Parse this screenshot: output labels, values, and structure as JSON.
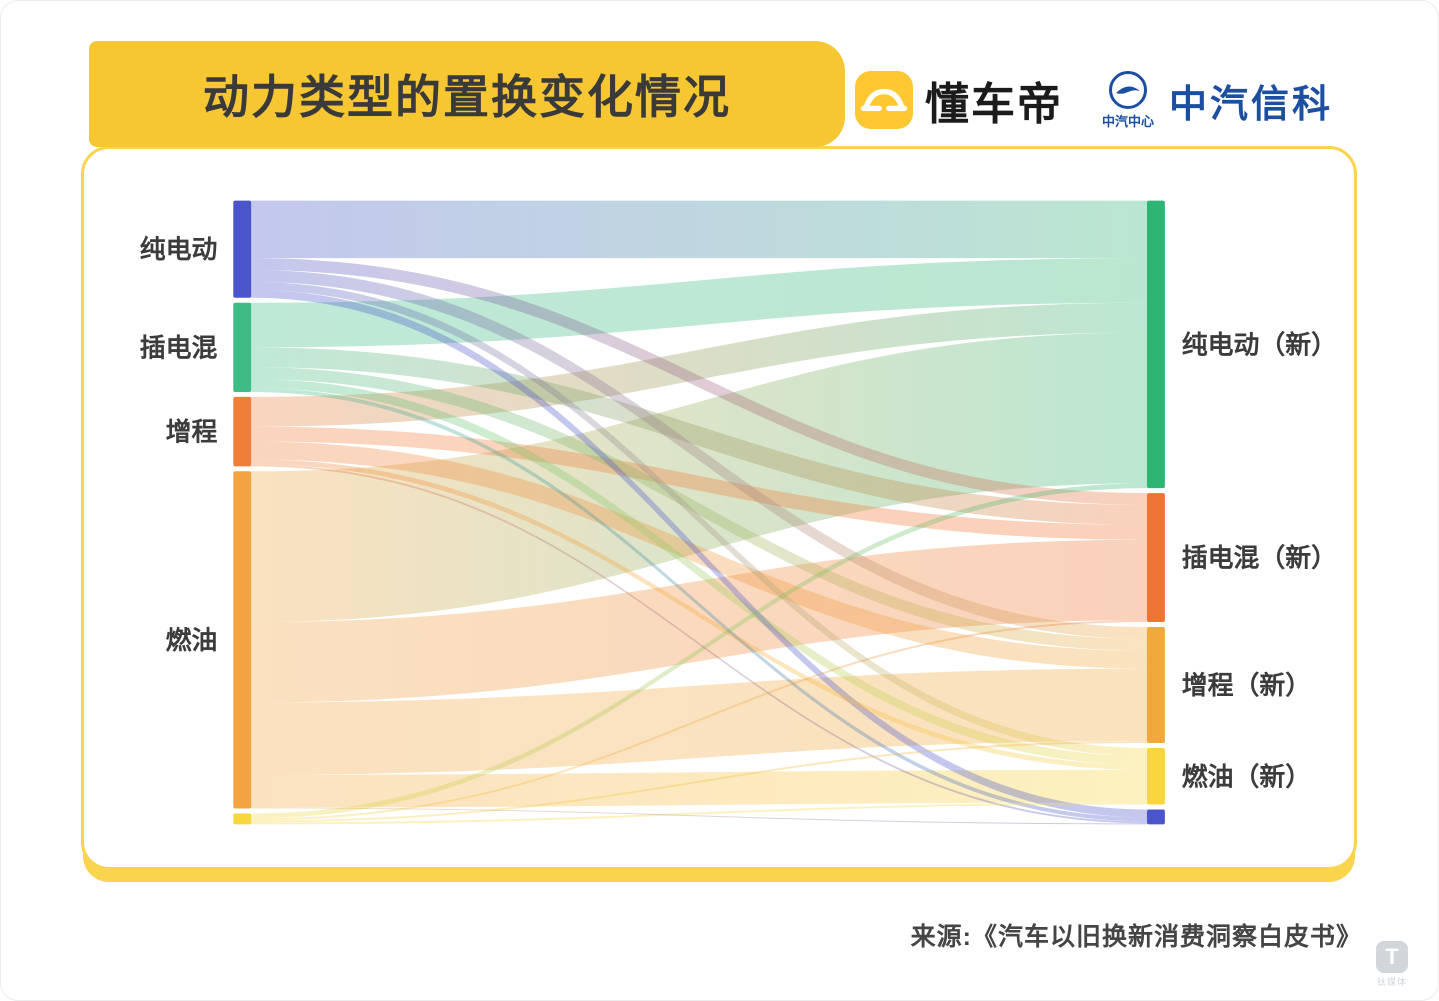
{
  "colors": {
    "banner_yellow": "#F7C733",
    "card_border_yellow": "#F9D44C",
    "title_text": "#3A3A3A",
    "catarc_blue": "#1D4FA0"
  },
  "header": {
    "title": "动力类型的置换变化情况",
    "dongchedi": "懂车帝",
    "catarc_center": "中汽中心",
    "catarc_tech": "中汽信科"
  },
  "footer": {
    "source": "来源:《汽车以旧换新消费洞察白皮书》",
    "watermark": "钛媒体"
  },
  "chart_data": {
    "type": "sankey",
    "title": "动力类型的置换变化情况",
    "orientation": "left-to-right",
    "units": "relative flow share estimated from ribbon widths (no numeric labels shown in figure)",
    "left_nodes": [
      {
        "id": "chundiandong",
        "label": "纯电动",
        "color": "#4A55CC"
      },
      {
        "id": "chadianhun",
        "label": "插电混",
        "color": "#3DBD85"
      },
      {
        "id": "zengcheng",
        "label": "增程",
        "color": "#F07E38"
      },
      {
        "id": "ranyou",
        "label": "燃油",
        "color": "#F2A440"
      },
      {
        "id": "unlabeled-left",
        "label": "",
        "color": "#F7D63E"
      }
    ],
    "right_nodes": [
      {
        "id": "chundiandong-new",
        "label": "纯电动（新）",
        "color": "#2FB573"
      },
      {
        "id": "chadianhun-new",
        "label": "插电混（新）",
        "color": "#EE7433"
      },
      {
        "id": "zengcheng-new",
        "label": "增程（新）",
        "color": "#F2A93C"
      },
      {
        "id": "ranyou-new",
        "label": "燃油（新）",
        "color": "#F8D63C"
      },
      {
        "id": "unlabeled-right",
        "label": "",
        "color": "#4A55CC"
      }
    ],
    "links": [
      {
        "source": 0,
        "target": 0,
        "value": 58
      },
      {
        "source": 0,
        "target": 1,
        "value": 12
      },
      {
        "source": 0,
        "target": 2,
        "value": 12
      },
      {
        "source": 0,
        "target": 3,
        "value": 8
      },
      {
        "source": 0,
        "target": 4,
        "value": 8
      },
      {
        "source": 1,
        "target": 0,
        "value": 45
      },
      {
        "source": 1,
        "target": 1,
        "value": 20
      },
      {
        "source": 1,
        "target": 2,
        "value": 12
      },
      {
        "source": 1,
        "target": 3,
        "value": 9
      },
      {
        "source": 1,
        "target": 4,
        "value": 4
      },
      {
        "source": 2,
        "target": 0,
        "value": 30
      },
      {
        "source": 2,
        "target": 1,
        "value": 15
      },
      {
        "source": 2,
        "target": 2,
        "value": 18
      },
      {
        "source": 2,
        "target": 3,
        "value": 5
      },
      {
        "source": 2,
        "target": 4,
        "value": 2
      },
      {
        "source": 3,
        "target": 0,
        "value": 152
      },
      {
        "source": 3,
        "target": 1,
        "value": 81
      },
      {
        "source": 3,
        "target": 2,
        "value": 73
      },
      {
        "source": 3,
        "target": 3,
        "value": 33
      },
      {
        "source": 3,
        "target": 4,
        "value": 1
      },
      {
        "source": 4,
        "target": 0,
        "value": 5
      },
      {
        "source": 4,
        "target": 1,
        "value": 2
      },
      {
        "source": 4,
        "target": 2,
        "value": 2
      },
      {
        "source": 4,
        "target": 3,
        "value": 2
      }
    ]
  }
}
